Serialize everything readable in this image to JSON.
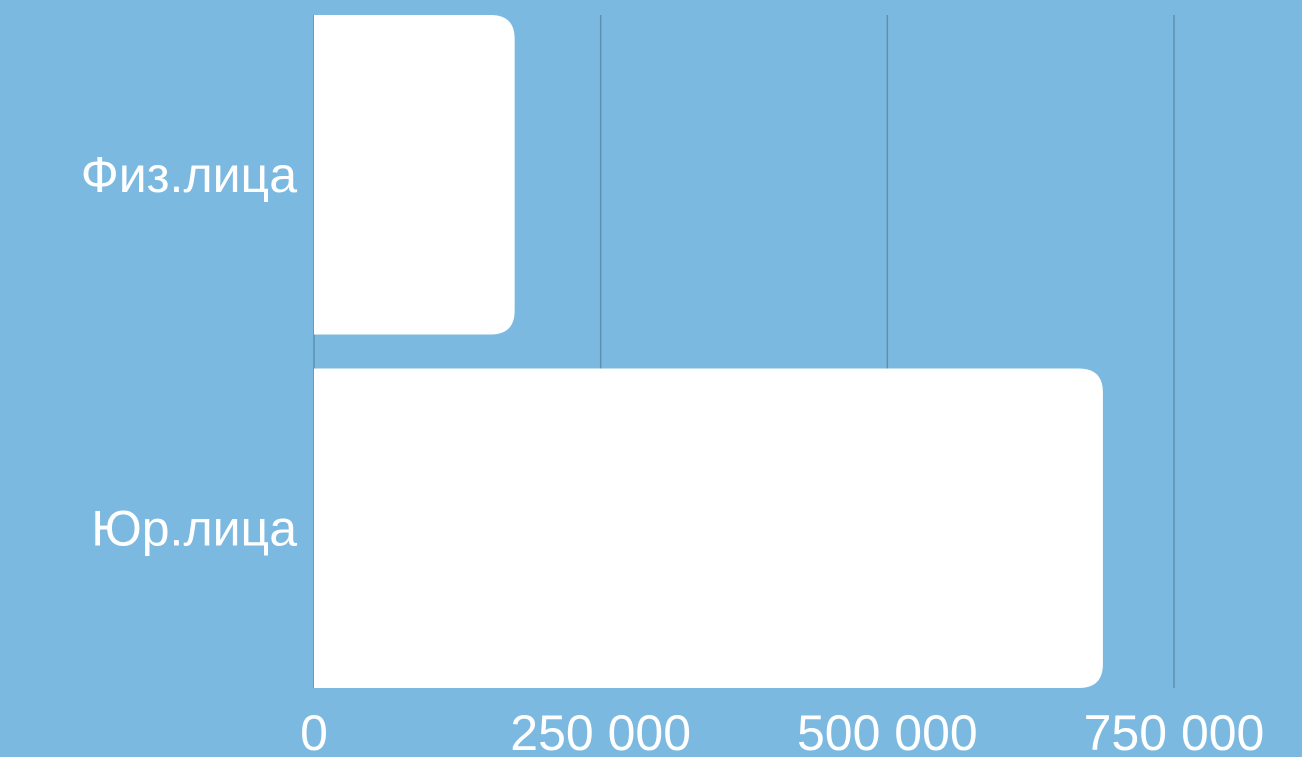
{
  "chart_data": {
    "type": "bar",
    "orientation": "horizontal",
    "categories": [
      "Физ.лица",
      "Юр.лица"
    ],
    "values": [
      175000,
      688000
    ],
    "xlim": [
      0,
      750000
    ],
    "x_ticks": [
      0,
      250000,
      500000,
      750000
    ],
    "x_tick_labels": [
      "0",
      "250 000",
      "500 000",
      "750 000"
    ],
    "grid": "vertical",
    "colors": {
      "background": "#7cb9e0",
      "bar": "#ffffff",
      "grid": "#5f8fae",
      "text": "#ffffff"
    }
  }
}
